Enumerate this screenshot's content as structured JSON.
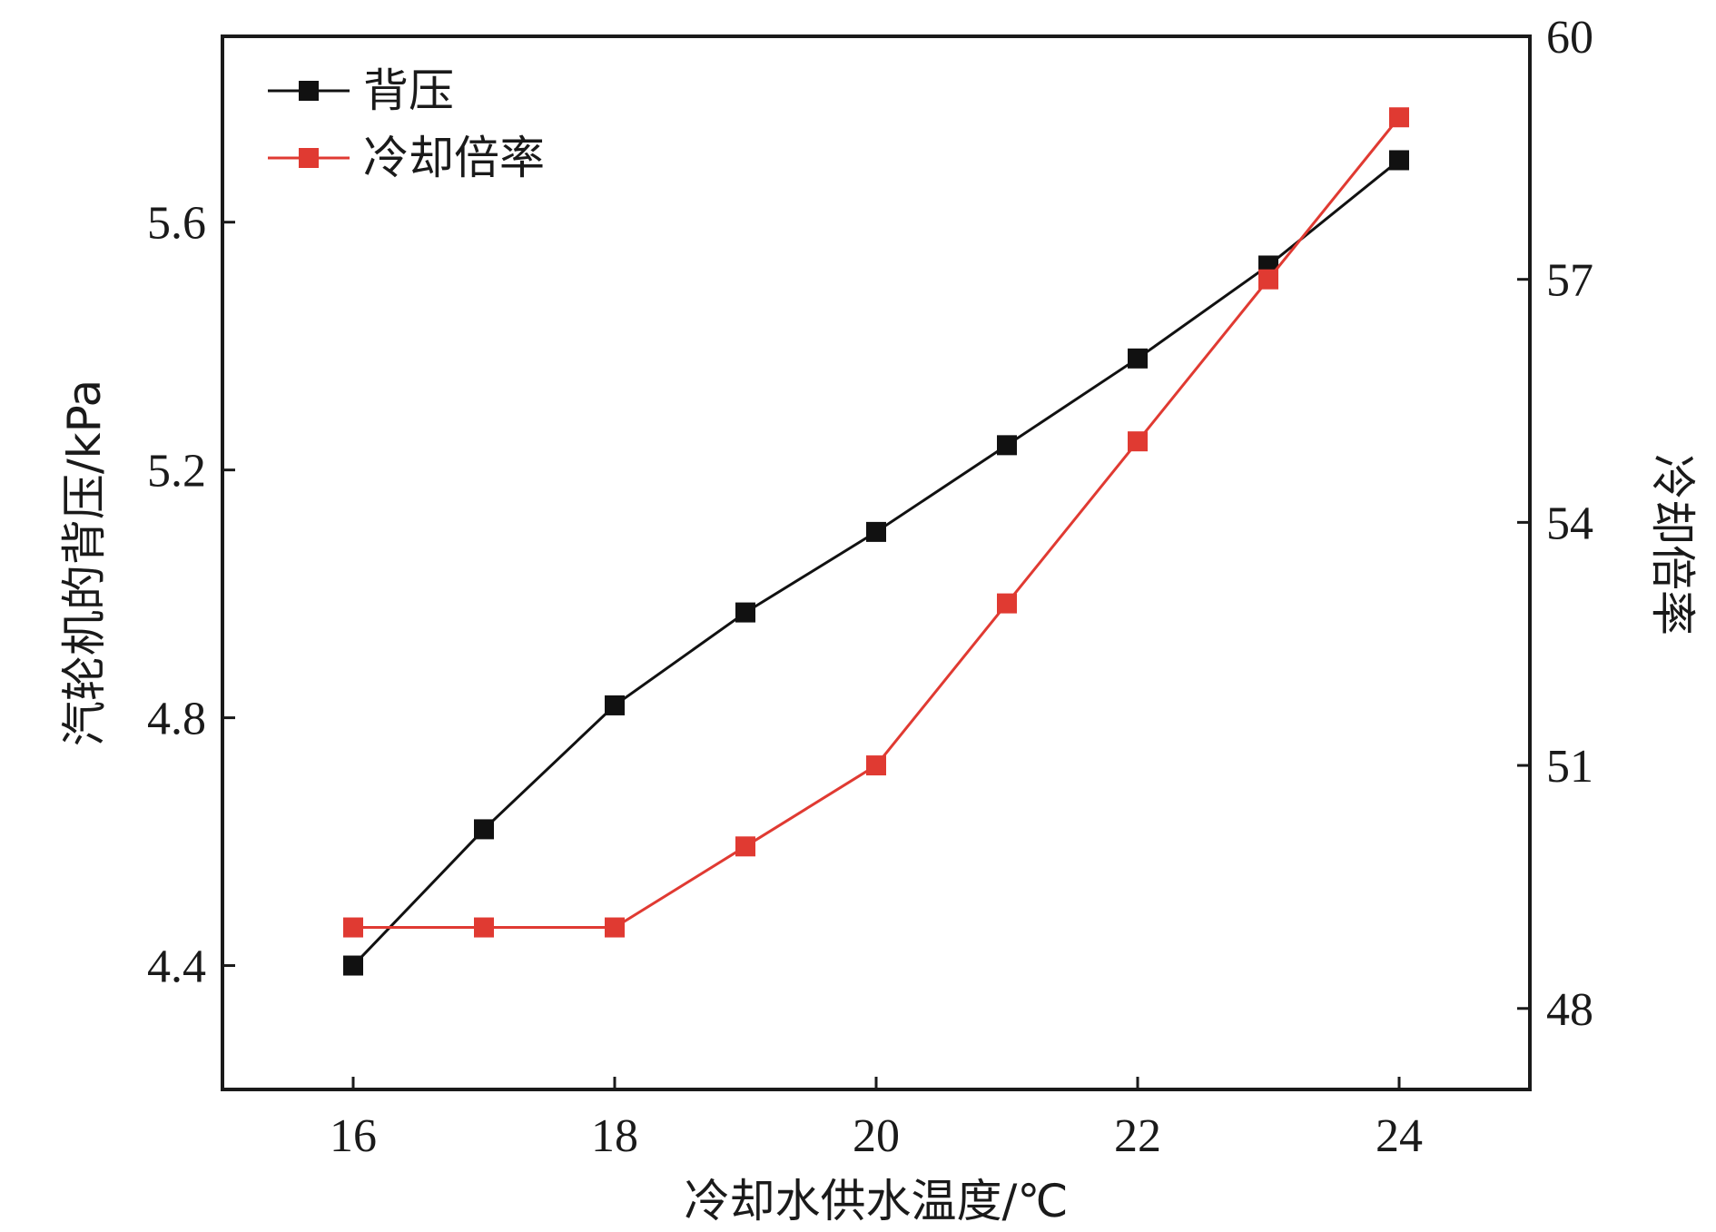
{
  "chart_data": {
    "type": "line",
    "xlabel": "冷却水供水温度/℃",
    "ylabel_left": "汽轮机的背压/kPa",
    "ylabel_right": "冷却倍率",
    "xlim": [
      15,
      25
    ],
    "ylim_left": [
      4.2,
      5.9
    ],
    "ylim_right": [
      47,
      60
    ],
    "x_ticks": [
      16,
      18,
      20,
      22,
      24
    ],
    "y_left_ticks": [
      4.4,
      4.8,
      5.2,
      5.6
    ],
    "y_left_tick_labels": [
      "4.4",
      "4.8",
      "5.2",
      "5.6"
    ],
    "y_right_ticks": [
      48,
      51,
      54,
      57,
      60
    ],
    "grid": false,
    "legend_position": "top-left",
    "series": [
      {
        "name": "背压",
        "axis": "left",
        "color": "#111111",
        "marker": "square",
        "x": [
          16,
          17,
          18,
          19,
          20,
          21,
          22,
          23,
          24
        ],
        "y": [
          4.4,
          4.62,
          4.82,
          4.97,
          5.1,
          5.24,
          5.38,
          5.53,
          5.7
        ]
      },
      {
        "name": "冷却倍率",
        "axis": "right",
        "color": "#e03a32",
        "marker": "square",
        "x": [
          16,
          17,
          18,
          19,
          20,
          21,
          22,
          23,
          24
        ],
        "y": [
          49,
          49,
          49,
          50,
          51,
          53,
          55,
          57,
          59
        ]
      }
    ]
  }
}
